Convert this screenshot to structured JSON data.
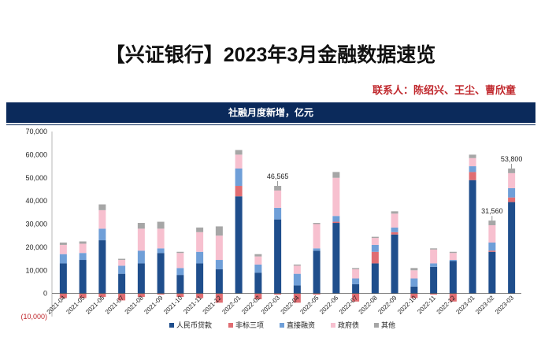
{
  "header": {
    "title": "【兴证银行】2023年3月金融数据速览",
    "contact": "联系人：陈绍兴、王尘、曹欣童",
    "banner": "社融月度新增，亿元"
  },
  "colors": {
    "banner_bg": "#0b2a5b",
    "contact_red": "#c0282d"
  },
  "chart_data": {
    "type": "bar",
    "stacked": true,
    "title": "社融月度新增，亿元",
    "ylim": [
      -10000,
      70000
    ],
    "yticks": [
      "70,000",
      "60,000",
      "50,000",
      "40,000",
      "30,000",
      "20,000",
      "10,000",
      "0",
      "(10,000)"
    ],
    "categories": [
      "2021-04",
      "2021-05",
      "2021-06",
      "2021-07",
      "2021-08",
      "2021-09",
      "2021-10",
      "2021-11",
      "2021-12",
      "2022-01",
      "2022-02",
      "2022-03",
      "2022-04",
      "2022-05",
      "2022-06",
      "2022-07",
      "2022-08",
      "2022-09",
      "2022-10",
      "2022-11",
      "2022-12",
      "2023-01",
      "2023-02",
      "2023-03"
    ],
    "series": [
      {
        "name": "人民币贷款",
        "color": "#1f4e8c",
        "values": [
          13000,
          14500,
          23000,
          8500,
          13000,
          17500,
          8000,
          13000,
          10500,
          42000,
          9000,
          32000,
          3500,
          18500,
          30500,
          4000,
          13000,
          25500,
          3000,
          11500,
          14000,
          49000,
          18000,
          39500
        ]
      },
      {
        "name": "非标三项",
        "color": "#e06d72",
        "values": [
          -2000,
          -2000,
          -1500,
          -3000,
          -1500,
          -500,
          -1500,
          -2000,
          -4000,
          4500,
          -2500,
          -500,
          -4000,
          -500,
          500,
          -3500,
          5000,
          1000,
          -2000,
          -500,
          -3500,
          3500,
          500,
          2000
        ]
      },
      {
        "name": "直接融资",
        "color": "#6f9fd8",
        "values": [
          4000,
          3000,
          5000,
          3500,
          5500,
          2000,
          3000,
          5000,
          4000,
          7500,
          3500,
          5000,
          5000,
          1000,
          2500,
          2500,
          3000,
          2000,
          3500,
          1500,
          500,
          2500,
          3500,
          4000
        ]
      },
      {
        "name": "政府债",
        "color": "#f7c0cf",
        "values": [
          4000,
          4000,
          8000,
          2500,
          9500,
          8500,
          6500,
          8500,
          10500,
          6000,
          3500,
          7500,
          3500,
          10500,
          16500,
          4000,
          3000,
          6000,
          3500,
          6000,
          3000,
          3500,
          7500,
          6500
        ]
      },
      {
        "name": "其他",
        "color": "#a6a6a6",
        "values": [
          1000,
          1000,
          2500,
          500,
          2500,
          3000,
          500,
          2000,
          4000,
          2000,
          1000,
          2000,
          500,
          500,
          2500,
          500,
          500,
          1000,
          1000,
          500,
          500,
          1500,
          2000,
          2000
        ]
      }
    ],
    "annotations": [
      {
        "category": "2022-03",
        "label": "46,565",
        "value": 46565
      },
      {
        "category": "2023-02",
        "label": "31,560",
        "value": 31560
      },
      {
        "category": "2023-03",
        "label": "53,800",
        "value": 53800
      }
    ],
    "legend": {
      "position": "bottom"
    }
  }
}
